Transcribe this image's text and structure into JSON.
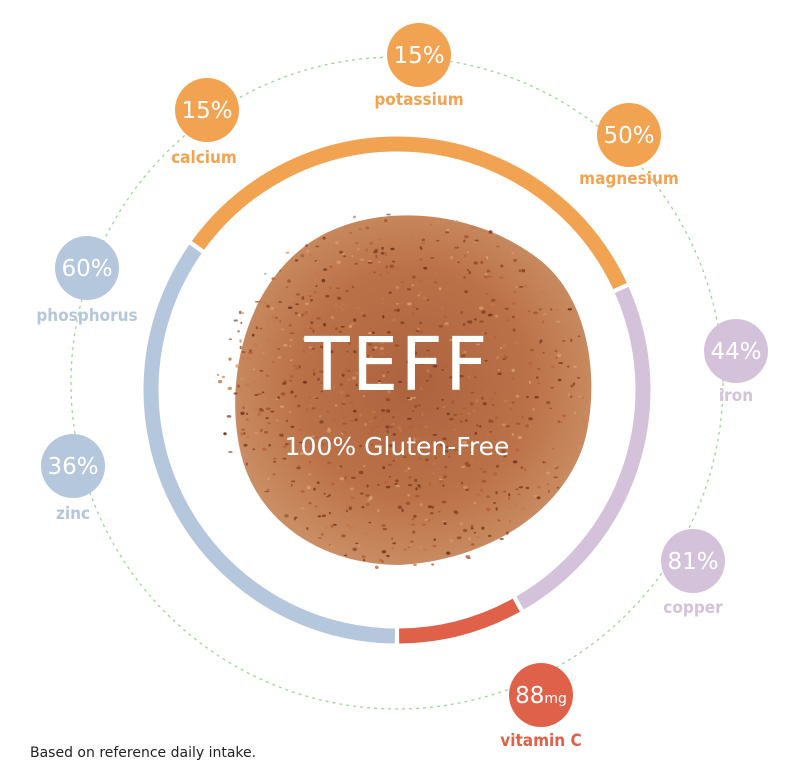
{
  "title": "TEFF",
  "subtitle": "100% Gluten-Free",
  "footnote": "Based on reference daily intake.",
  "colors": {
    "orange": "#f2a352",
    "blue": "#b5c7dc",
    "purple": "#d4c2da",
    "red": "#e0614a",
    "grain": "#b5643a",
    "dotted_ring": "#9ed69a"
  },
  "nutrients": [
    {
      "id": "potassium",
      "label": "potassium",
      "value": "15%",
      "group": "orange"
    },
    {
      "id": "magnesium",
      "label": "magnesium",
      "value": "50%",
      "group": "orange"
    },
    {
      "id": "iron",
      "label": "iron",
      "value": "44%",
      "group": "purple"
    },
    {
      "id": "copper",
      "label": "copper",
      "value": "81%",
      "group": "purple"
    },
    {
      "id": "vitamin-c",
      "label": "vitamin C",
      "value": "88",
      "unit": "mg",
      "group": "red"
    },
    {
      "id": "zinc",
      "label": "zinc",
      "value": "36%",
      "group": "blue"
    },
    {
      "id": "phosphorus",
      "label": "phosphorus",
      "value": "60%",
      "group": "blue"
    },
    {
      "id": "calcium",
      "label": "calcium",
      "value": "15%",
      "group": "orange"
    }
  ]
}
